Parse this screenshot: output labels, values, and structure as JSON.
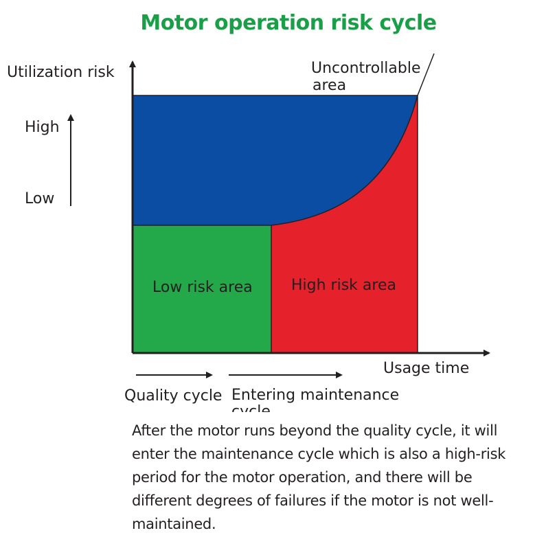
{
  "title": "Motor operation risk cycle",
  "axes": {
    "y_label": "Utilization risk",
    "x_label": "Usage time"
  },
  "risk_scale": {
    "high": "High",
    "low": "Low"
  },
  "areas": {
    "uncontrollable_line1": "Uncontrollable",
    "uncontrollable_line2": "area",
    "low_risk": "Low risk area",
    "high_risk": "High risk area"
  },
  "colors": {
    "title_green": "#1a9f48",
    "uncontrollable_blue": "#0a4da2",
    "low_risk_green": "#23a84a",
    "high_risk_red": "#e5212c"
  },
  "cycles": {
    "quality": "Quality cycle",
    "maintenance_line1": "Entering maintenance",
    "maintenance_line2": "cycle"
  },
  "description": "After the motor runs beyond the quality cycle, it will enter the maintenance cycle which is also a high-risk period for the motor operation, and there will be different degrees of failures if the motor is not well-maintained."
}
